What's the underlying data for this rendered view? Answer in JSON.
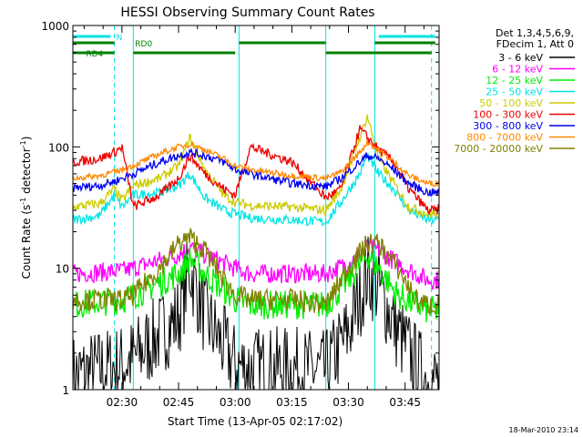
{
  "chart_data": {
    "type": "line",
    "title": "HESSI Observing Summary Count Rates",
    "xlabel": "Start Time (13-Apr-05 02:17:02)",
    "ylabel_main": "Count Rate (s",
    "ylabel_sup1": "-1",
    "ylabel_mid": " detector",
    "ylabel_sup2": "-1",
    "ylabel_end": ")",
    "yscale": "log",
    "ylim": [
      1,
      1000
    ],
    "xlim": [
      "02:17",
      "03:54"
    ],
    "x_ticks": [
      "02:30",
      "02:45",
      "03:00",
      "03:15",
      "03:30",
      "03:45"
    ],
    "y_ticks": [
      "1",
      "10",
      "100",
      "1000"
    ],
    "grid": false,
    "legend_header": [
      "Det 1,3,4,5,6,9,",
      "FDecim 1, Att 0"
    ],
    "legend_placement": "right",
    "footer_date": "18-Mar-2010 23:14",
    "series": [
      {
        "name": "3 - 6 keV",
        "color": "#000000",
        "x": [
          "02:17",
          "02:30",
          "02:33",
          "02:45",
          "02:48",
          "02:52",
          "03:00",
          "03:04",
          "03:15",
          "03:24",
          "03:30",
          "03:35",
          "03:38",
          "03:43",
          "03:48",
          "03:51"
        ],
        "y": [
          1.3,
          1.6,
          1.8,
          4,
          10,
          4,
          1.6,
          1.5,
          1.5,
          1.4,
          3,
          9,
          7,
          3,
          1.6,
          1.2
        ]
      },
      {
        "name": "6 - 12 keV",
        "color": "#ff00ff",
        "x": [
          "02:17",
          "02:30",
          "02:33",
          "02:45",
          "02:48",
          "02:52",
          "03:00",
          "03:04",
          "03:15",
          "03:24",
          "03:30",
          "03:35",
          "03:38",
          "03:43",
          "03:48",
          "03:51"
        ],
        "y": [
          9,
          9.5,
          10,
          13,
          15,
          13,
          10,
          9,
          9,
          9,
          11,
          15,
          14,
          11,
          9,
          8
        ]
      },
      {
        "name": "12 - 25 keV",
        "color": "#00ee00",
        "x": [
          "02:17",
          "02:30",
          "02:33",
          "02:45",
          "02:48",
          "02:52",
          "03:00",
          "03:04",
          "03:15",
          "03:24",
          "03:30",
          "03:35",
          "03:38",
          "03:43",
          "03:48",
          "03:51"
        ],
        "y": [
          5,
          5.5,
          6,
          9,
          12,
          9,
          5.5,
          5,
          5,
          5,
          8,
          13,
          10,
          6,
          5,
          4.5
        ]
      },
      {
        "name": "25 - 50 keV",
        "color": "#00e5e5",
        "x": [
          "02:17",
          "02:24",
          "02:28",
          "02:30",
          "02:33",
          "02:40",
          "02:45",
          "02:48",
          "02:52",
          "02:57",
          "03:00",
          "03:04",
          "03:15",
          "03:24",
          "03:28",
          "03:33",
          "03:35",
          "03:38",
          "03:42",
          "03:46",
          "03:51"
        ],
        "y": [
          25,
          27,
          40,
          32,
          40,
          42,
          48,
          60,
          38,
          30,
          28,
          26,
          25,
          24,
          35,
          60,
          85,
          60,
          45,
          30,
          25
        ]
      },
      {
        "name": "50 - 100 keV",
        "color": "#cccc00",
        "x": [
          "02:17",
          "02:24",
          "02:28",
          "02:30",
          "02:33",
          "02:40",
          "02:45",
          "02:48",
          "02:52",
          "02:57",
          "03:00",
          "03:04",
          "03:15",
          "03:24",
          "03:28",
          "03:33",
          "03:35",
          "03:38",
          "03:42",
          "03:46",
          "03:51"
        ],
        "y": [
          32,
          34,
          45,
          36,
          48,
          55,
          70,
          120,
          65,
          40,
          35,
          33,
          32,
          30,
          45,
          120,
          180,
          80,
          50,
          32,
          28
        ]
      },
      {
        "name": "100 - 300 keV",
        "color": "#ee0000",
        "x": [
          "02:17",
          "02:24",
          "02:28",
          "02:30",
          "02:33",
          "02:40",
          "02:45",
          "02:48",
          "02:52",
          "02:57",
          "03:00",
          "03:04",
          "03:15",
          "03:24",
          "03:28",
          "03:33",
          "03:35",
          "03:38",
          "03:42",
          "03:46",
          "03:51"
        ],
        "y": [
          75,
          80,
          90,
          100,
          32,
          40,
          55,
          85,
          60,
          45,
          40,
          100,
          75,
          38,
          45,
          140,
          120,
          95,
          75,
          45,
          30
        ]
      },
      {
        "name": "300 - 800 keV",
        "color": "#0000ee",
        "x": [
          "02:17",
          "02:24",
          "02:28",
          "02:30",
          "02:33",
          "02:40",
          "02:45",
          "02:48",
          "02:52",
          "02:57",
          "03:00",
          "03:04",
          "03:15",
          "03:24",
          "03:28",
          "03:33",
          "03:35",
          "03:38",
          "03:42",
          "03:46",
          "03:51"
        ],
        "y": [
          46,
          48,
          52,
          55,
          60,
          75,
          85,
          90,
          85,
          75,
          65,
          60,
          50,
          47,
          55,
          75,
          85,
          80,
          65,
          50,
          42
        ]
      },
      {
        "name": "800 - 7000 keV",
        "color": "#ff8800",
        "x": [
          "02:17",
          "02:24",
          "02:28",
          "02:30",
          "02:33",
          "02:40",
          "02:45",
          "02:48",
          "02:52",
          "02:57",
          "03:00",
          "03:04",
          "03:15",
          "03:24",
          "03:28",
          "03:33",
          "03:35",
          "03:38",
          "03:42",
          "03:46",
          "03:51"
        ],
        "y": [
          55,
          58,
          62,
          65,
          70,
          88,
          100,
          105,
          95,
          80,
          70,
          65,
          58,
          55,
          62,
          90,
          110,
          95,
          75,
          58,
          50
        ]
      },
      {
        "name": "7000 - 20000 keV",
        "color": "#808000",
        "x": [
          "02:17",
          "02:30",
          "02:33",
          "02:40",
          "02:45",
          "02:48",
          "02:52",
          "02:57",
          "03:00",
          "03:04",
          "03:15",
          "03:24",
          "03:30",
          "03:35",
          "03:38",
          "03:43",
          "03:48",
          "03:51"
        ],
        "y": [
          5.5,
          5.5,
          6,
          10,
          16,
          18,
          14,
          8,
          6,
          5.5,
          5.5,
          5,
          10,
          16,
          16,
          10,
          5.5,
          5
        ]
      }
    ],
    "annotations": {
      "flags": [
        {
          "label": "N",
          "color": "#00e5e5",
          "segments": [
            [
              "02:17",
              "02:27"
            ],
            [
              "03:38",
              "03:53"
            ]
          ]
        },
        {
          "label": "RD0",
          "color": "#008000",
          "segments": [
            [
              "02:17",
              "02:28"
            ],
            [
              "03:01",
              "03:24"
            ],
            [
              "03:37",
              "03:53"
            ]
          ]
        },
        {
          "label": "RD4",
          "color": "#008000",
          "segments": [
            [
              "02:17",
              "02:28"
            ],
            [
              "02:33",
              "03:00"
            ],
            [
              "03:24",
              "03:52"
            ]
          ]
        }
      ],
      "vlines_solid": [
        "02:17",
        "02:33",
        "03:01",
        "03:24",
        "03:37"
      ],
      "vlines_dashed": [
        "02:28",
        "03:52"
      ]
    }
  }
}
